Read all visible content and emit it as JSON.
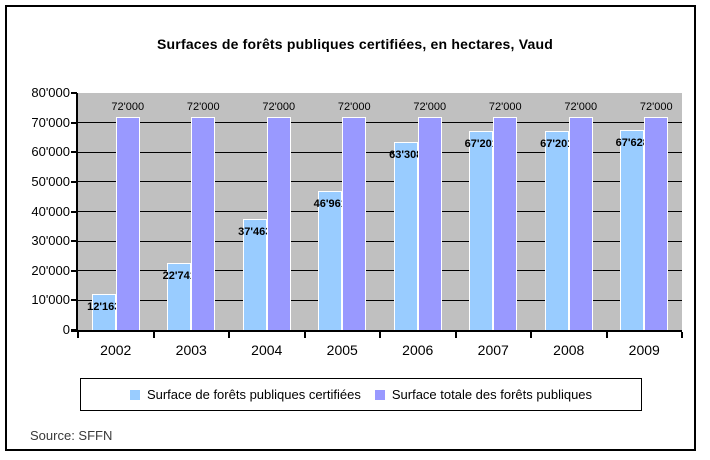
{
  "title": "Surfaces de forêts publiques certifiées, en hectares, Vaud",
  "source_note": "Source: SFFN",
  "colors": {
    "plot_background": "#c0c0c0",
    "gridline": "#000000",
    "bar_border": "#ffffff",
    "series_certified": "#99ccff",
    "series_total": "#9999ff",
    "text": "#000000"
  },
  "chart_data": {
    "type": "bar",
    "title": "Surfaces de forêts publiques certifiées, en hectares, Vaud",
    "categories": [
      "2002",
      "2003",
      "2004",
      "2005",
      "2006",
      "2007",
      "2008",
      "2009"
    ],
    "series": [
      {
        "name": "Surface de forêts publiques certifiées",
        "color": "#99ccff",
        "values": [
          12163,
          22741,
          37463,
          46961,
          63308,
          67201,
          67201,
          67628
        ],
        "labels": [
          "12'163",
          "22'741",
          "37'463",
          "46'961",
          "63'308",
          "67'201",
          "67'201",
          "67'628"
        ],
        "label_position": "inside-end",
        "label_bold": true
      },
      {
        "name": "Surface totale des forêts publiques",
        "color": "#9999ff",
        "values": [
          72000,
          72000,
          72000,
          72000,
          72000,
          72000,
          72000,
          72000
        ],
        "labels": [
          "72'000",
          "72'000",
          "72'000",
          "72'000",
          "72'000",
          "72'000",
          "72'000",
          "72'000"
        ],
        "label_position": "outside-end",
        "label_bold": false
      }
    ],
    "xlabel": "",
    "ylabel": "",
    "ylim": [
      0,
      80000
    ],
    "ytick_step": 10000,
    "ytick_labels": [
      "0",
      "10'000",
      "20'000",
      "30'000",
      "40'000",
      "50'000",
      "60'000",
      "70'000",
      "80'000"
    ],
    "grid": true,
    "legend_position": "bottom"
  }
}
